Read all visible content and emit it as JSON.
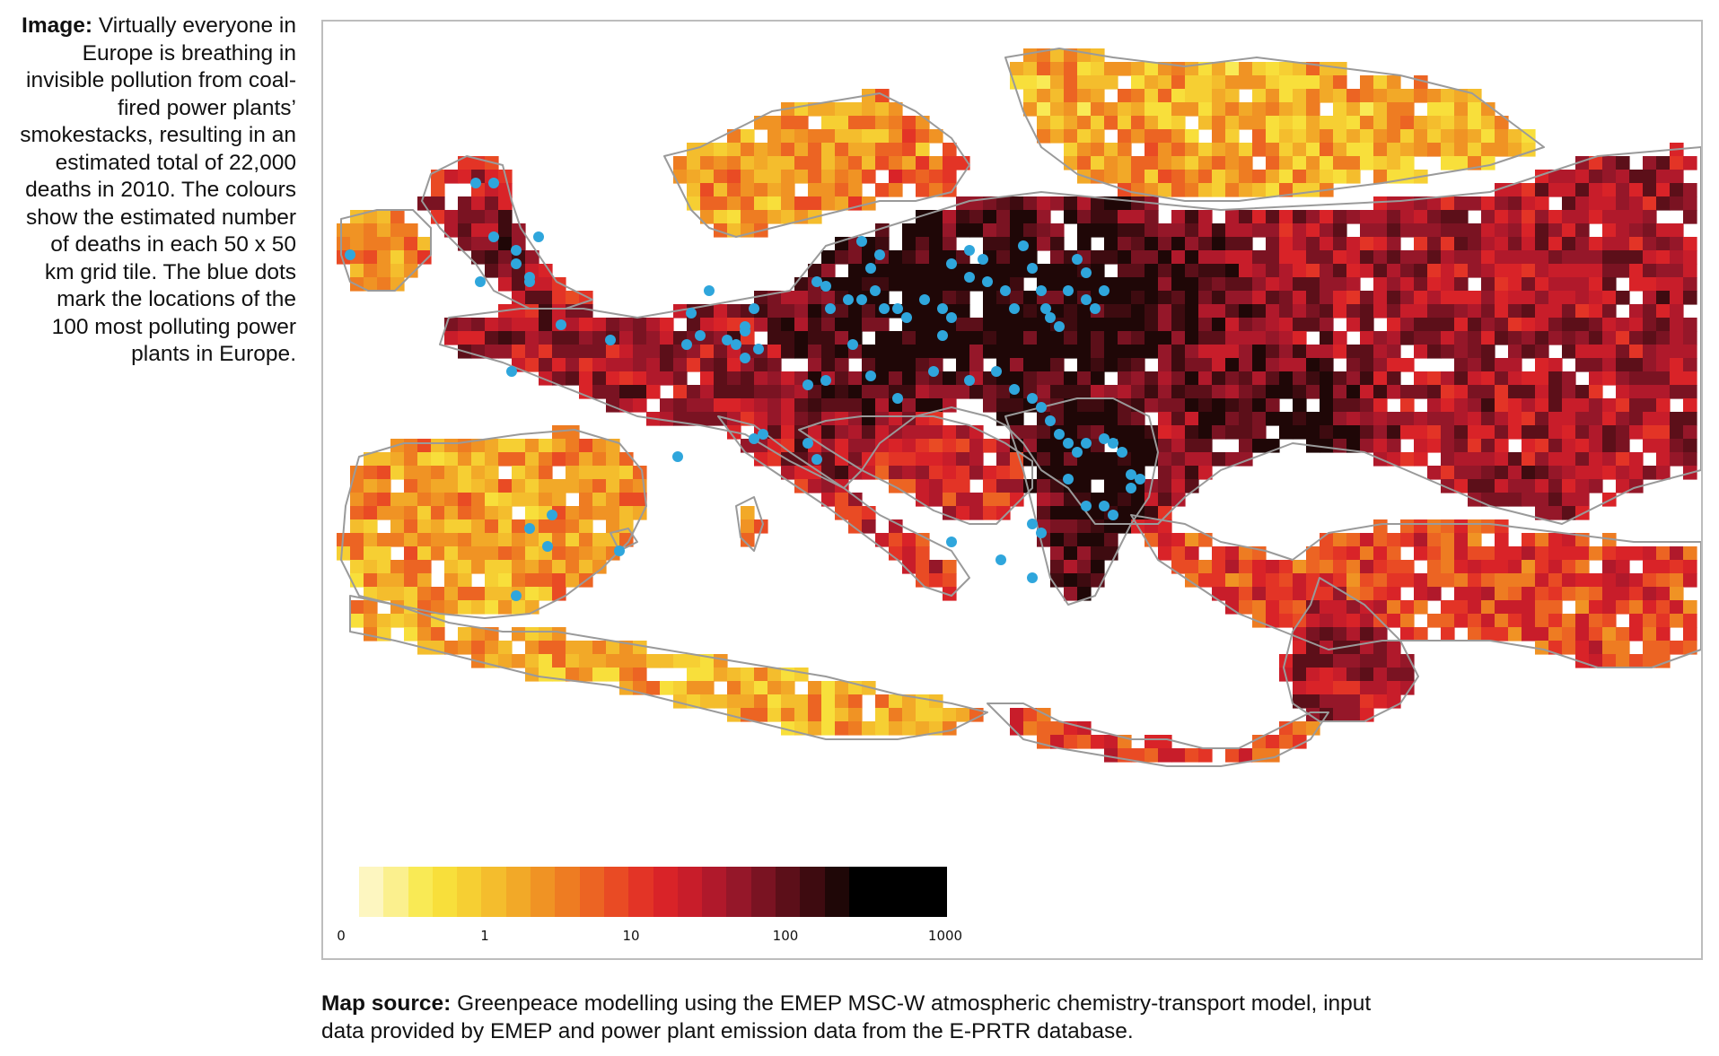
{
  "caption": {
    "label": "Image:",
    "text": " Virtually everyone in Europe is breathing in invisible pollution from coal-fired power plants’ smokestacks, resulting in an estimated total of 22,000 deaths in 2010. The colours show the estimated number of deaths in each 50 x 50 km grid tile. The blue dots mark the locations of the 100 most polluting power plants in Europe."
  },
  "source": {
    "label": "Map source:",
    "text": " Greenpeace modelling using the EMEP MSC-W atmospheric chemistry-transport model, input data provided by EMEP and power plant emission data from the E-PRTR database."
  },
  "legend": {
    "ticks": [
      "0",
      "1",
      "10",
      "100",
      "1000"
    ],
    "colors": [
      "#fdf6c0",
      "#fbf08e",
      "#f9ea55",
      "#f8df3b",
      "#f6cf33",
      "#f4bd2d",
      "#f2a928",
      "#f09324",
      "#ee7c22",
      "#ec6423",
      "#e94b24",
      "#e33426",
      "#d92328",
      "#c81d2a",
      "#b0192b",
      "#951729",
      "#7a1322",
      "#5c0f19",
      "#3e0b10",
      "#1f0707",
      "#000000",
      "#000000",
      "#000000",
      "#000000"
    ]
  },
  "colors": {
    "water": "#ffffff",
    "coastline": "#9a9a9a",
    "power_plant": "#2fa6dc"
  }
}
